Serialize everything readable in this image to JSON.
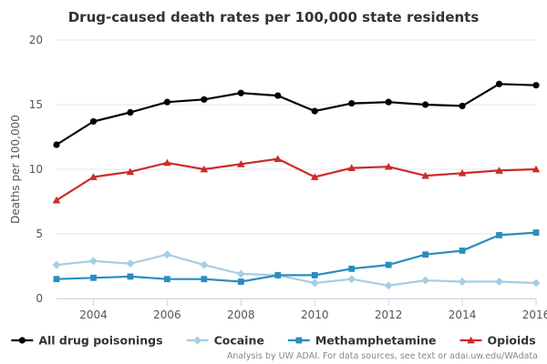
{
  "chart_data": {
    "type": "line",
    "title": "Drug-caused death rates per 100,000 state residents",
    "xlabel": "",
    "ylabel": "Deaths per 100,000",
    "xlim": [
      2003,
      2016
    ],
    "ylim": [
      0,
      20
    ],
    "x_ticks": [
      2004,
      2006,
      2008,
      2010,
      2012,
      2014,
      2016
    ],
    "y_ticks": [
      0,
      5,
      10,
      15,
      20
    ],
    "grid": true,
    "legend_position": "bottom",
    "x": [
      2003,
      2004,
      2005,
      2006,
      2007,
      2008,
      2009,
      2010,
      2011,
      2012,
      2013,
      2014,
      2015,
      2016
    ],
    "series": [
      {
        "name": "All drug poisonings",
        "color": "#000000",
        "marker": "circle",
        "values": [
          11.9,
          13.7,
          14.4,
          15.2,
          15.4,
          15.9,
          15.7,
          14.5,
          15.1,
          15.2,
          15.0,
          14.9,
          16.6,
          16.5
        ]
      },
      {
        "name": "Cocaine",
        "color": "#a6cee3",
        "marker": "diamond",
        "values": [
          2.6,
          2.9,
          2.7,
          3.4,
          2.6,
          1.9,
          1.8,
          1.2,
          1.5,
          1.0,
          1.4,
          1.3,
          1.3,
          1.2
        ]
      },
      {
        "name": "Methamphetamine",
        "color": "#2b8cbe",
        "marker": "square",
        "values": [
          1.5,
          1.6,
          1.7,
          1.5,
          1.5,
          1.3,
          1.8,
          1.8,
          2.3,
          2.6,
          3.4,
          3.7,
          4.9,
          5.1
        ]
      },
      {
        "name": "Opioids",
        "color": "#cc2b2b",
        "marker": "triangle",
        "values": [
          7.6,
          9.4,
          9.8,
          10.5,
          10.0,
          10.4,
          10.8,
          9.4,
          10.1,
          10.2,
          9.5,
          9.7,
          9.9,
          10.0
        ]
      }
    ]
  },
  "credit": "Analysis by UW ADAI. For data sources, see text or adai.uw.edu/WAdata"
}
